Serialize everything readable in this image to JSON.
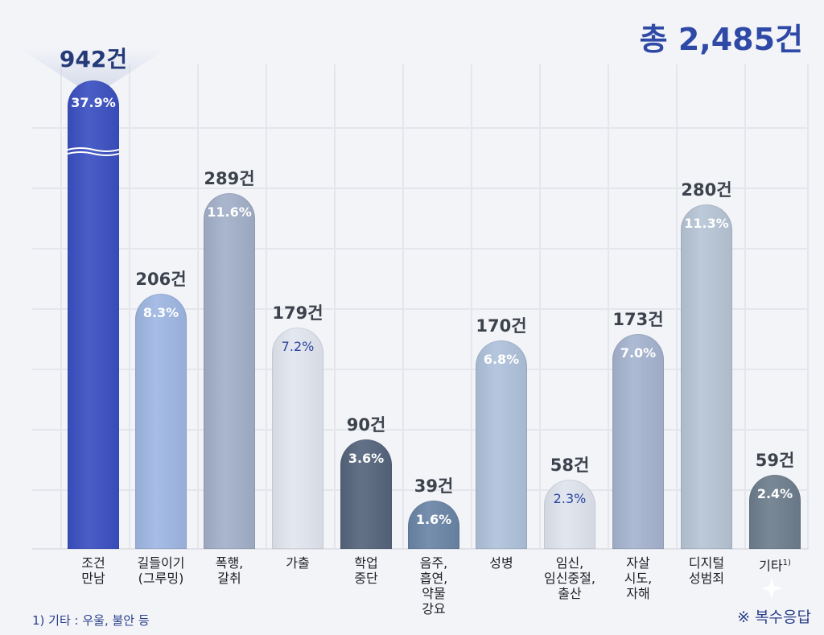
{
  "total_label": "총 2,485건",
  "footnote": "1) 기타 : 우울, 불안 등",
  "multi_note": "※ 복수응답",
  "chart_data": {
    "type": "bar",
    "title": "총 2,485건",
    "total": 2485,
    "unit": "건",
    "categories": [
      "조건 만남",
      "길들이기 (그루밍)",
      "폭행, 갈취",
      "가출",
      "학업 중단",
      "음주, 흡연, 약물 강요",
      "성병",
      "임신, 임신중절, 출산",
      "자살 시도, 자해",
      "디지털 성범죄",
      "기타"
    ],
    "series": [
      {
        "name": "건수",
        "values": [
          942,
          206,
          289,
          179,
          90,
          39,
          170,
          58,
          173,
          280,
          59
        ]
      },
      {
        "name": "비율(%)",
        "values": [
          37.9,
          8.3,
          11.6,
          7.2,
          3.6,
          1.6,
          6.8,
          2.3,
          7.0,
          11.3,
          2.4
        ]
      }
    ],
    "annotations": [
      "조건 만남 bar truncated with wave break",
      "※ 복수응답",
      "1) 기타 : 우울, 불안 등"
    ],
    "grid": true,
    "legend": "none",
    "xlabel": "",
    "ylabel": ""
  },
  "bars": [
    {
      "count": "942건",
      "pct": "37.9%",
      "label1": "조건",
      "label2": "만남",
      "label3": "",
      "label4": "",
      "color": "#3b50c2",
      "pct_dark": false
    },
    {
      "count": "206건",
      "pct": "8.3%",
      "label1": "길들이기",
      "label2": "(그루밍)",
      "label3": "",
      "label4": "",
      "color": "#9fb7e3",
      "pct_dark": false
    },
    {
      "count": "289건",
      "pct": "11.6%",
      "label1": "폭행,",
      "label2": "갈취",
      "label3": "",
      "label4": "",
      "color": "#a3b0c9",
      "pct_dark": false
    },
    {
      "count": "179건",
      "pct": "7.2%",
      "label1": "가출",
      "label2": "",
      "label3": "",
      "label4": "",
      "color": "#e2e6ef",
      "pct_dark": true
    },
    {
      "count": "90건",
      "pct": "3.6%",
      "label1": "학업",
      "label2": "중단",
      "label3": "",
      "label4": "",
      "color": "#56657d",
      "pct_dark": false
    },
    {
      "count": "39건",
      "pct": "1.6%",
      "label1": "음주,",
      "label2": "흡연,",
      "label3": "약물",
      "label4": "강요",
      "color": "#6a85a6",
      "pct_dark": false
    },
    {
      "count": "170건",
      "pct": "6.8%",
      "label1": "성병",
      "label2": "",
      "label3": "",
      "label4": "",
      "color": "#afc2db",
      "pct_dark": false
    },
    {
      "count": "58건",
      "pct": "2.3%",
      "label1": "임신,",
      "label2": "임신중절,",
      "label3": "출산",
      "label4": "",
      "color": "#dfe4ee",
      "pct_dark": true
    },
    {
      "count": "173건",
      "pct": "7.0%",
      "label1": "자살",
      "label2": "시도,",
      "label3": "자해",
      "label4": "",
      "color": "#a6b4d0",
      "pct_dark": false
    },
    {
      "count": "280건",
      "pct": "11.3%",
      "label1": "디지털",
      "label2": "성범죄",
      "label3": "",
      "label4": "",
      "color": "#b6c5d6",
      "pct_dark": false
    },
    {
      "count": "59건",
      "pct": "2.4%",
      "label1": "기타",
      "label2": "",
      "label3": "",
      "label4": "",
      "color": "#6e7e8d",
      "pct_dark": false,
      "sup": "1)"
    }
  ]
}
